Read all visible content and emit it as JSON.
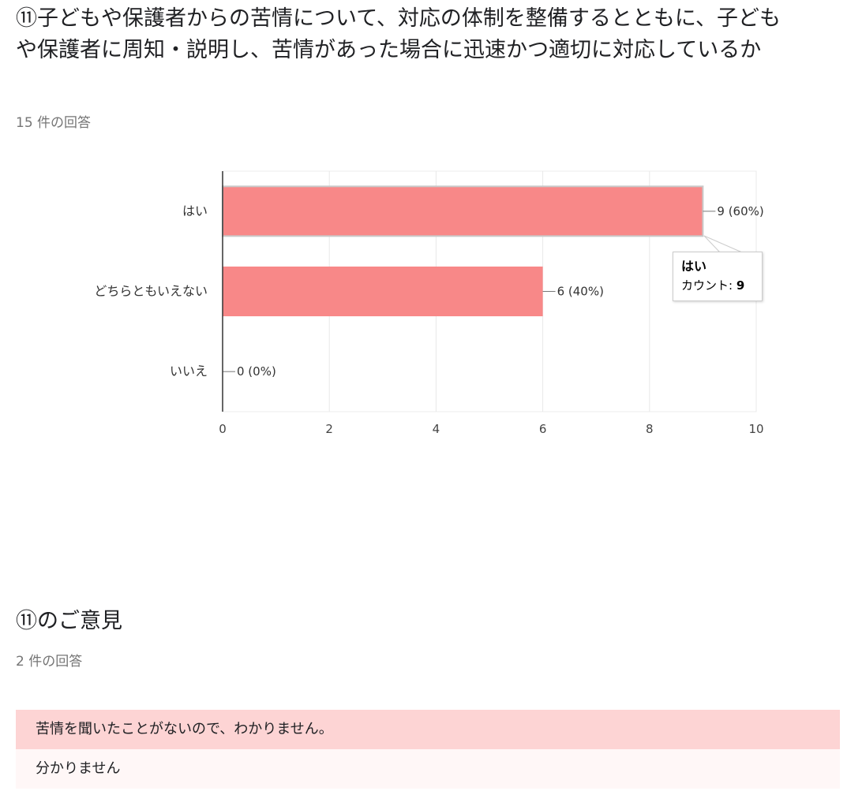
{
  "question": {
    "title": "⑪子どもや保護者からの苦情について、対応の体制を整備するとともに、子どもや保護者に周知・説明し、苦情があった場合に迅速かつ適切に対応しているか",
    "response_count": "15 件の回答"
  },
  "chart_data": {
    "type": "bar",
    "orientation": "horizontal",
    "categories": [
      "はい",
      "どちらともいえない",
      "いいえ"
    ],
    "values": [
      9,
      6,
      0
    ],
    "data_labels": [
      "9 (60%)",
      "6 (40%)",
      "0 (0%)"
    ],
    "xlim": [
      0,
      10
    ],
    "x_ticks": [
      "0",
      "2",
      "4",
      "6",
      "8",
      "10"
    ],
    "bar_color": "#f88888",
    "grid": true
  },
  "tooltip": {
    "title": "はい",
    "label": "カウント: ",
    "value": "9"
  },
  "opinions": {
    "title": "⑪のご意見",
    "response_count": "2 件の回答",
    "items": [
      "苦情を聞いたことがないので、わかりません。",
      "分かりません"
    ]
  }
}
